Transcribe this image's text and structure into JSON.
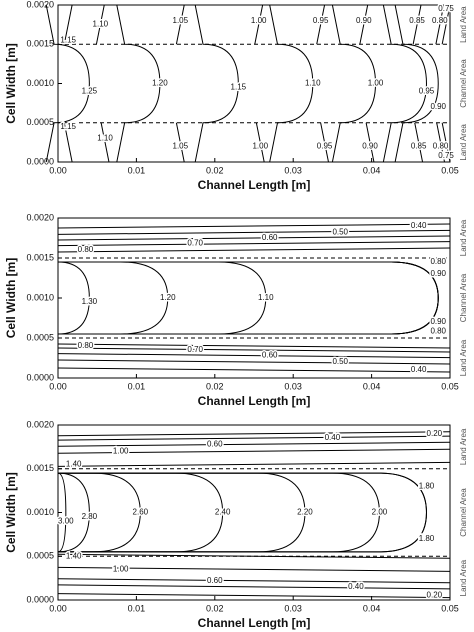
{
  "chart_data": [
    {
      "type": "contour",
      "xlabel": "Channel Length [m]",
      "ylabel": "Cell Width [m]",
      "xlim": [
        0,
        0.05
      ],
      "ylim": [
        0,
        0.002
      ],
      "xticks": [
        {
          "value": 0,
          "label": "0.00"
        },
        {
          "value": 0.01,
          "label": "0.01"
        },
        {
          "value": 0.02,
          "label": "0.02"
        },
        {
          "value": 0.03,
          "label": "0.03"
        },
        {
          "value": 0.04,
          "label": "0.04"
        },
        {
          "value": 0.05,
          "label": "0.05"
        }
      ],
      "yticks": [
        {
          "value": 0,
          "label": "0.0000"
        },
        {
          "value": 0.0005,
          "label": "0.0005"
        },
        {
          "value": 0.001,
          "label": "0.0010"
        },
        {
          "value": 0.0015,
          "label": "0.0015"
        },
        {
          "value": 0.002,
          "label": "0.0020"
        }
      ],
      "hlines": [
        0.0005,
        0.0015
      ],
      "region_labels": [
        "Land Area",
        "Channel Area",
        "Land Area"
      ],
      "levels": [
        1.15,
        1.1,
        1.05,
        1.0,
        0.95,
        0.9,
        0.85,
        0.8,
        0.75,
        1.25,
        1.2,
        1.15,
        1.1,
        1.0,
        0.95,
        0.9,
        1.15,
        1.1,
        1.05,
        1.0,
        0.95,
        0.9,
        0.85,
        0.8,
        0.75
      ],
      "value_labels": [
        "1.15",
        "1.10",
        "1.05",
        "1.00",
        "0.95",
        "0.90",
        "0.85",
        "0.80",
        "0.75",
        "1.25",
        "1.20",
        "1.15",
        "1.10",
        "1.00",
        "0.95",
        "0.90",
        "1.15",
        "1.10",
        "1.05",
        "1.00",
        "0.95",
        "0.90",
        "0.85",
        "0.80",
        "0.75"
      ],
      "label_x": [
        0.0013,
        0.0054,
        0.0156,
        0.0256,
        0.0335,
        0.039,
        0.0458,
        0.0487,
        0.0495,
        0.004,
        0.013,
        0.023,
        0.0325,
        0.0405,
        0.047,
        0.0485,
        0.0013,
        0.006,
        0.0156,
        0.0258,
        0.034,
        0.0398,
        0.046,
        0.0488,
        0.0495
      ],
      "label_y": [
        0.00155,
        0.00175,
        0.0018,
        0.0018,
        0.0018,
        0.0018,
        0.0018,
        0.0018,
        0.00195,
        0.0009,
        0.001,
        0.00095,
        0.001,
        0.001,
        0.0009,
        0.0007,
        0.00045,
        0.0003,
        0.0002,
        0.0002,
        0.0002,
        0.0002,
        0.0002,
        0.0002,
        8e-05
      ]
    },
    {
      "type": "contour",
      "xlabel": "Channel Length [m]",
      "ylabel": "Cell Width [m]",
      "xlim": [
        0,
        0.05
      ],
      "ylim": [
        0,
        0.002
      ],
      "xticks": [
        {
          "value": 0,
          "label": "0.00"
        },
        {
          "value": 0.01,
          "label": "0.01"
        },
        {
          "value": 0.02,
          "label": "0.02"
        },
        {
          "value": 0.03,
          "label": "0.03"
        },
        {
          "value": 0.04,
          "label": "0.04"
        },
        {
          "value": 0.05,
          "label": "0.05"
        }
      ],
      "yticks": [
        {
          "value": 0,
          "label": "0.0000"
        },
        {
          "value": 0.0005,
          "label": "0.0005"
        },
        {
          "value": 0.001,
          "label": "0.0010"
        },
        {
          "value": 0.0015,
          "label": "0.0015"
        },
        {
          "value": 0.002,
          "label": "0.0020"
        }
      ],
      "hlines": [
        0.0005,
        0.0015
      ],
      "region_labels": [
        "Land Area",
        "Channel Area",
        "Land Area"
      ],
      "levels": [
        0.4,
        0.5,
        0.6,
        0.7,
        0.8,
        0.8,
        0.9,
        1.3,
        1.2,
        1.1,
        0.9,
        0.8,
        0.8,
        0.7,
        0.6,
        0.5,
        0.4
      ],
      "value_labels": [
        "0.40",
        "0.50",
        "0.60",
        "0.70",
        "0.80",
        "0.80",
        "0.90",
        "1.30",
        "1.20",
        "1.10",
        "0.90",
        "0.80",
        "0.80",
        "0.70",
        "0.60",
        "0.50",
        "0.40"
      ],
      "label_x": [
        0.046,
        0.036,
        0.027,
        0.0175,
        0.0035,
        0.0485,
        0.0485,
        0.004,
        0.014,
        0.0265,
        0.0485,
        0.0485,
        0.0035,
        0.0175,
        0.027,
        0.036,
        0.046
      ],
      "label_y": [
        0.0019,
        0.00182,
        0.00175,
        0.00168,
        0.0016,
        0.00145,
        0.0013,
        0.00095,
        0.001,
        0.001,
        0.0007,
        0.00058,
        0.0004,
        0.00035,
        0.00028,
        0.0002,
        0.0001
      ]
    },
    {
      "type": "contour",
      "xlabel": "Channel Length [m]",
      "ylabel": "Cell Width [m]",
      "xlim": [
        0,
        0.05
      ],
      "ylim": [
        0,
        0.002
      ],
      "xticks": [
        {
          "value": 0,
          "label": "0.00"
        },
        {
          "value": 0.01,
          "label": "0.01"
        },
        {
          "value": 0.02,
          "label": "0.02"
        },
        {
          "value": 0.03,
          "label": "0.03"
        },
        {
          "value": 0.04,
          "label": "0.04"
        },
        {
          "value": 0.05,
          "label": "0.05"
        }
      ],
      "yticks": [
        {
          "value": 0,
          "label": "0.0000"
        },
        {
          "value": 0.0005,
          "label": "0.0005"
        },
        {
          "value": 0.001,
          "label": "0.0010"
        },
        {
          "value": 0.0015,
          "label": "0.0015"
        },
        {
          "value": 0.002,
          "label": "0.0020"
        }
      ],
      "hlines": [
        0.0005,
        0.0015
      ],
      "region_labels": [
        "Land Area",
        "Channel Area",
        "Land Area"
      ],
      "levels": [
        0.2,
        0.4,
        0.6,
        1.0,
        1.4,
        1.8,
        3.0,
        2.8,
        2.6,
        2.4,
        2.2,
        2.0,
        1.8,
        1.4,
        1.0,
        0.6,
        0.4,
        0.2
      ],
      "value_labels": [
        "0.20",
        "0.40",
        "0.60",
        "1.00",
        "1.40",
        "1.80",
        "3.00",
        "2.80",
        "2.60",
        "2.40",
        "2.20",
        "2.00",
        "1.80",
        "1.40",
        "1.00",
        "0.60",
        "0.40",
        "0.20"
      ],
      "label_x": [
        0.048,
        0.035,
        0.02,
        0.008,
        0.002,
        0.047,
        0.001,
        0.004,
        0.0105,
        0.021,
        0.0315,
        0.041,
        0.047,
        0.002,
        0.008,
        0.02,
        0.038,
        0.048
      ],
      "label_y": [
        0.0019,
        0.00185,
        0.00178,
        0.0017,
        0.00155,
        0.0013,
        0.0009,
        0.00095,
        0.001,
        0.001,
        0.001,
        0.001,
        0.0007,
        0.0005,
        0.00035,
        0.00022,
        0.00015,
        5e-05
      ]
    }
  ]
}
